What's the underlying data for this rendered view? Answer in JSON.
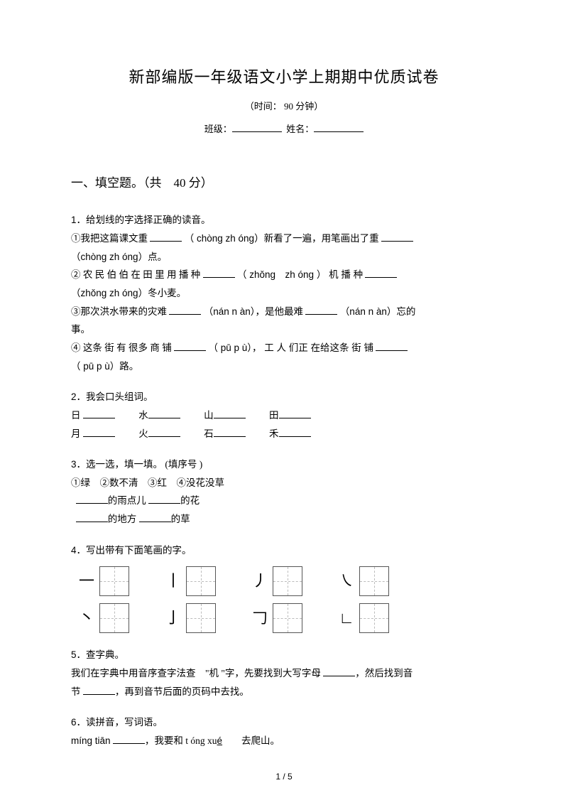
{
  "title": "新部编版一年级语文小学上期期中优质试卷",
  "time_label": "（时间： 90 分钟）",
  "class_label": "班级：",
  "name_label": "姓名：",
  "section1": {
    "heading": "一、填空题。（共　40 分）"
  },
  "q1": {
    "num": "1．",
    "title": "给划线的字选择正确的读音。",
    "line1a": "①我把这篇课文重",
    "p1a": "（ chòng zh óng）新看了一遍，用笔画出了重",
    "line1b": "（chòng zh óng）点。",
    "line2a": "② 农 民 伯 伯 在 田 里 用 播 种",
    "p2a": "（ zhǒng　zh óng ） 机 播 种",
    "line2b": "（zhǒng zh óng）冬小麦。",
    "line3a": "③那次洪水带来的灾难",
    "p3a": "（nán n àn），是他最难",
    "p3b": "（nán n àn）忘的",
    "line3end": "事。",
    "line4a": "④ 这条 街 有 很多 商 铺",
    "p4a": "（ pū p ù）， 工 人 们正 在给这条 街 铺",
    "line4b": "（ pū p ù）路。"
  },
  "q2": {
    "num": "2．",
    "title": "我会口头组词。",
    "w1": "日",
    "w2": "水",
    "w3": "山",
    "w4": "田",
    "w5": "月",
    "w6": "火",
    "w7": "石",
    "w8": "禾"
  },
  "q3": {
    "num": "3．",
    "title": "选一选，填一填。 (填序号 )",
    "opts": "①绿　②数不清　③红　④没花没草",
    "l1a": "的雨点儿",
    "l1b": "的花",
    "l2a": "的地方",
    "l2b": "的草"
  },
  "q4": {
    "num": "4．",
    "title": "写出带有下面笔画的字。",
    "strokes_row1": [
      "一",
      "丨",
      "丿",
      "㇏"
    ],
    "strokes_row2": [
      "丶",
      "亅",
      "𠃌",
      "∟"
    ]
  },
  "q5": {
    "num": "5．",
    "title": "查字典。",
    "text_a": "我们在字典中用音序查字法查　\"机 \"字，先要找到大写字母",
    "text_b": "，然后找到音",
    "text_c": "节",
    "text_d": "，再到音节后面的页码中去找。"
  },
  "q6": {
    "num": "6．",
    "title": "读拼音，写词语。",
    "p1": "míng tiān",
    "mid": "，我要和 t óng xu",
    "p2": "é",
    "end": "　　去爬山。"
  },
  "page_num": "1 / 5"
}
